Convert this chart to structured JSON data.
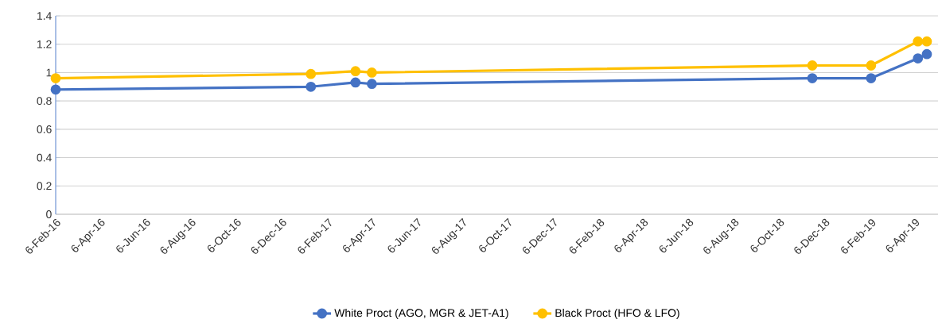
{
  "chart_data": {
    "type": "line",
    "x": [
      "2016-02-06",
      "2017-01-14",
      "2017-03-15",
      "2017-04-06",
      "2018-11-19",
      "2019-02-06",
      "2019-04-10",
      "2019-04-22"
    ],
    "series": [
      {
        "name": "White Proct (AGO, MGR & JET-A1)",
        "color": "#4472c4",
        "values": [
          0.88,
          0.9,
          0.93,
          0.92,
          0.96,
          0.96,
          1.1,
          1.13
        ]
      },
      {
        "name": "Black Proct (HFO & LFO)",
        "color": "#ffc000",
        "values": [
          0.96,
          0.99,
          1.01,
          1.0,
          1.05,
          1.05,
          1.22,
          1.22
        ]
      }
    ],
    "xlim": [
      "2016-02-06",
      "2019-05-07"
    ],
    "xticks": [
      {
        "value": "2016-02-06",
        "label": "6-Feb-16"
      },
      {
        "value": "2016-04-06",
        "label": "6-Apr-16"
      },
      {
        "value": "2016-06-06",
        "label": "6-Jun-16"
      },
      {
        "value": "2016-08-06",
        "label": "6-Aug-16"
      },
      {
        "value": "2016-10-06",
        "label": "6-Oct-16"
      },
      {
        "value": "2016-12-06",
        "label": "6-Dec-16"
      },
      {
        "value": "2017-02-06",
        "label": "6-Feb-17"
      },
      {
        "value": "2017-04-06",
        "label": "6-Apr-17"
      },
      {
        "value": "2017-06-06",
        "label": "6-Jun-17"
      },
      {
        "value": "2017-08-06",
        "label": "6-Aug-17"
      },
      {
        "value": "2017-10-06",
        "label": "6-Oct-17"
      },
      {
        "value": "2017-12-06",
        "label": "6-Dec-17"
      },
      {
        "value": "2018-02-06",
        "label": "6-Feb-18"
      },
      {
        "value": "2018-04-06",
        "label": "6-Apr-18"
      },
      {
        "value": "2018-06-06",
        "label": "6-Jun-18"
      },
      {
        "value": "2018-08-06",
        "label": "6-Aug-18"
      },
      {
        "value": "2018-10-06",
        "label": "6-Oct-18"
      },
      {
        "value": "2018-12-06",
        "label": "6-Dec-18"
      },
      {
        "value": "2019-02-06",
        "label": "6-Feb-19"
      },
      {
        "value": "2019-04-06",
        "label": "6-Apr-19"
      }
    ],
    "ylim": [
      0,
      1.4
    ],
    "yticks": [
      0,
      {
        "value": 0.2,
        "label": "0.2"
      },
      {
        "value": 0.4,
        "label": "0.4"
      },
      {
        "value": 0.6,
        "label": "0.6"
      },
      {
        "value": 0.8,
        "label": "0.8"
      },
      1,
      {
        "value": 1.2,
        "label": "1.2"
      },
      {
        "value": 1.4,
        "label": "1.4"
      }
    ],
    "grid": "y",
    "legend": "bottom",
    "marker": "circle",
    "line_style": "solid"
  }
}
